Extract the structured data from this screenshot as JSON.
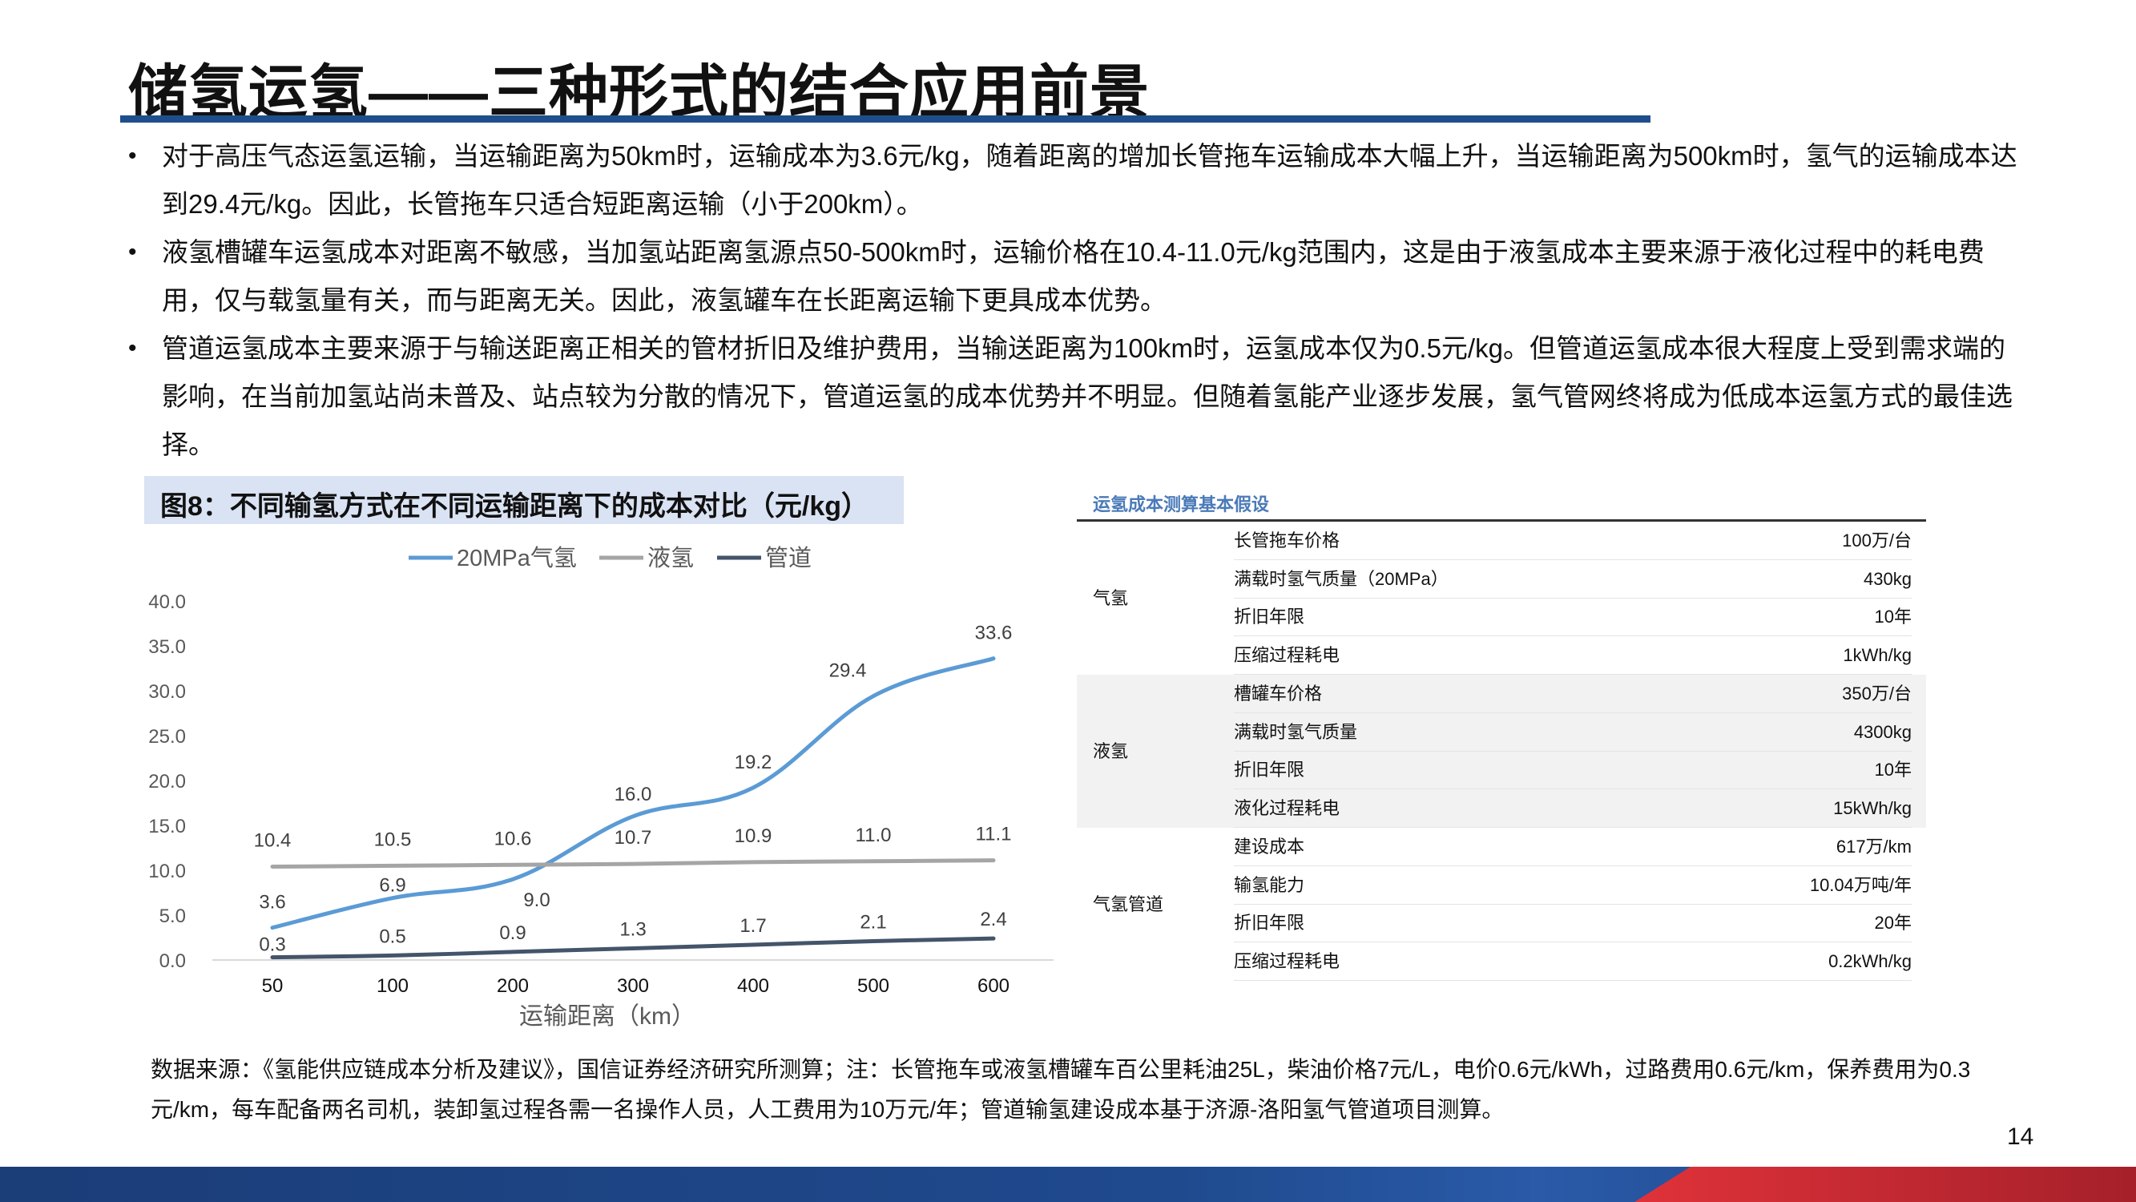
{
  "title": "储氢运氢——三种形式的结合应用前景",
  "bullets": [
    "对于高压气态运氢运输，当运输距离为50km时，运输成本为3.6元/kg，随着距离的增加长管拖车运输成本大幅上升，当运输距离为500km时，氢气的运输成本达到29.4元/kg。因此，长管拖车只适合短距离运输（小于200km）。",
    "液氢槽罐车运氢成本对距离不敏感，当加氢站距离氢源点50-500km时，运输价格在10.4-11.0元/kg范围内，这是由于液氢成本主要来源于液化过程中的耗电费用，仅与载氢量有关，而与距离无关。因此，液氢罐车在长距离运输下更具成本优势。",
    "管道运氢成本主要来源于与输送距离正相关的管材折旧及维护费用，当输送距离为100km时，运氢成本仅为0.5元/kg。但管道运氢成本很大程度上受到需求端的影响，在当前加氢站尚未普及、站点较为分散的情况下，管道运氢的成本优势并不明显。但随着氢能产业逐步发展，氢气管网终将成为低成本运氢方式的最佳选择。"
  ],
  "figure_title": "图8：不同输氢方式在不同运输距离下的成本对比（元/kg）",
  "chart_data": {
    "type": "line",
    "x": [
      50,
      100,
      200,
      300,
      400,
      500,
      600
    ],
    "xlabel": "运输距离（km）",
    "ylabel": "",
    "ylim": [
      0,
      40
    ],
    "yticks": [
      "0.0",
      "5.0",
      "10.0",
      "15.0",
      "20.0",
      "25.0",
      "30.0",
      "35.0",
      "40.0"
    ],
    "legend_position": "top",
    "grid": false,
    "series": [
      {
        "name": "20MPa气氢",
        "color": "#5b9bd5",
        "values": [
          3.6,
          6.9,
          9.0,
          16.0,
          19.2,
          29.4,
          33.6
        ],
        "labels": [
          "3.6",
          "6.9",
          "9.0",
          "16.0",
          "19.2",
          "29.4",
          "33.6"
        ]
      },
      {
        "name": "液氢",
        "color": "#a5a5a5",
        "values": [
          10.4,
          10.5,
          10.6,
          10.7,
          10.9,
          11.0,
          11.1
        ],
        "labels": [
          "10.4",
          "10.5",
          "10.6",
          "10.7",
          "10.9",
          "11.0",
          "11.1"
        ]
      },
      {
        "name": "管道",
        "color": "#44546a",
        "values": [
          0.3,
          0.5,
          0.9,
          1.3,
          1.7,
          2.1,
          2.4
        ],
        "labels": [
          "0.3",
          "0.5",
          "0.9",
          "1.3",
          "1.7",
          "2.1",
          "2.4"
        ]
      }
    ]
  },
  "table": {
    "title": "运氢成本测算基本假设",
    "groups": [
      {
        "name": "气氢",
        "rows": [
          {
            "k": "长管拖车价格",
            "v": "100万/台"
          },
          {
            "k": "满载时氢气质量（20MPa）",
            "v": "430kg"
          },
          {
            "k": "折旧年限",
            "v": "10年"
          },
          {
            "k": "压缩过程耗电",
            "v": "1kWh/kg"
          }
        ]
      },
      {
        "name": "液氢",
        "rows": [
          {
            "k": "槽罐车价格",
            "v": "350万/台"
          },
          {
            "k": "满载时氢气质量",
            "v": "4300kg"
          },
          {
            "k": "折旧年限",
            "v": "10年"
          },
          {
            "k": "液化过程耗电",
            "v": "15kWh/kg"
          }
        ]
      },
      {
        "name": "气氢管道",
        "rows": [
          {
            "k": "建设成本",
            "v": "617万/km"
          },
          {
            "k": "输氢能力",
            "v": "10.04万吨/年"
          },
          {
            "k": "折旧年限",
            "v": "20年"
          },
          {
            "k": "压缩过程耗电",
            "v": "0.2kWh/kg"
          }
        ]
      }
    ]
  },
  "source_note": "数据来源：《氢能供应链成本分析及建议》，国信证券经济研究所测算；注：长管拖车或液氢槽罐车百公里耗油25L，柴油价格7元/L，电价0.6元/kWh，过路费用0.6元/km，保养费用为0.3元/km，每车配备两名司机，装卸氢过程各需一名操作人员，人工费用为10万元/年；管道输氢建设成本基于济源-洛阳氢气管道项目测算。",
  "page_number": "14",
  "colors": {
    "title_rule": "#1f4e8c",
    "figure_title_bg": "#dae3f3",
    "band_blue": "#1f3f7a",
    "band_red": "#c0272d"
  }
}
